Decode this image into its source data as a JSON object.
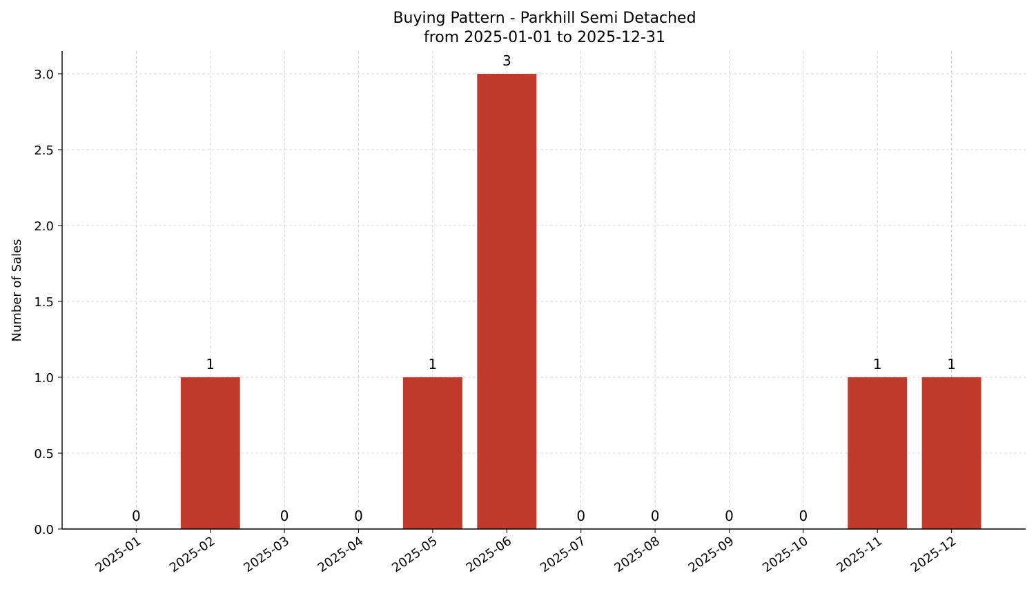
{
  "chart_data": {
    "type": "bar",
    "title": "Buying Pattern - Parkhill Semi Detached",
    "subtitle": "from 2025-01-01 to 2025-12-31",
    "xlabel": "",
    "ylabel": "Number of Sales",
    "categories": [
      "2025-01",
      "2025-02",
      "2025-03",
      "2025-04",
      "2025-05",
      "2025-06",
      "2025-07",
      "2025-08",
      "2025-09",
      "2025-10",
      "2025-11",
      "2025-12"
    ],
    "values": [
      0,
      1,
      0,
      0,
      1,
      3,
      0,
      0,
      0,
      0,
      1,
      1
    ],
    "ylim": [
      0,
      3.15
    ],
    "yticks": [
      "0.0",
      "0.5",
      "1.0",
      "1.5",
      "2.0",
      "2.5",
      "3.0"
    ],
    "grid": true,
    "bar_color": "#c0392b",
    "grid_color": "#cccccc"
  }
}
